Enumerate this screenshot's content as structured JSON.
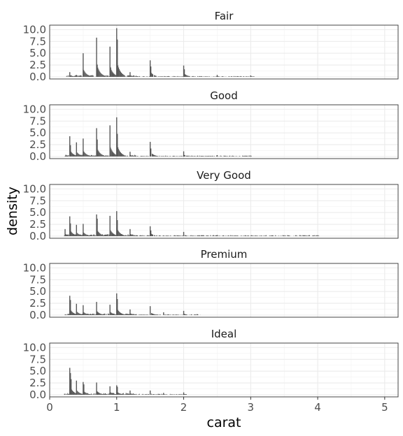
{
  "chart_data": {
    "type": "bar",
    "description_free": true,
    "xlabel": "carat",
    "ylabel": "density",
    "xlim": [
      0,
      5.2
    ],
    "ylim": [
      0,
      10.5
    ],
    "x_ticks": [
      0,
      1,
      2,
      3,
      4,
      5
    ],
    "x_tick_labels": [
      "0",
      "1",
      "2",
      "3",
      "4",
      "5"
    ],
    "y_ticks": [
      0,
      2.5,
      5,
      7.5,
      10
    ],
    "y_tick_labels": [
      "0.0",
      "2.5",
      "5.0",
      "7.5",
      "10.0"
    ],
    "grid": true,
    "panels": [
      {
        "name": "Fair",
        "peaks": [
          [
            0.3,
            1.0
          ],
          [
            0.4,
            0.4
          ],
          [
            0.5,
            5.0
          ],
          [
            0.7,
            8.3
          ],
          [
            0.71,
            2.6
          ],
          [
            0.9,
            6.4
          ],
          [
            0.91,
            2.0
          ],
          [
            1.0,
            10.3
          ],
          [
            1.01,
            7.9
          ],
          [
            1.02,
            2.0
          ],
          [
            1.2,
            1.0
          ],
          [
            1.5,
            3.5
          ],
          [
            1.51,
            2.2
          ],
          [
            2.0,
            2.4
          ],
          [
            2.01,
            1.6
          ],
          [
            2.5,
            0.4
          ],
          [
            3.0,
            0.3
          ]
        ],
        "tail": [
          0.25,
          3.05,
          0.35
        ]
      },
      {
        "name": "Good",
        "peaks": [
          [
            0.3,
            4.3
          ],
          [
            0.31,
            2.4
          ],
          [
            0.4,
            3.0
          ],
          [
            0.5,
            3.8
          ],
          [
            0.7,
            6.0
          ],
          [
            0.71,
            3.6
          ],
          [
            0.9,
            6.6
          ],
          [
            1.0,
            8.3
          ],
          [
            1.01,
            4.8
          ],
          [
            1.2,
            1.0
          ],
          [
            1.5,
            3.1
          ],
          [
            1.51,
            1.7
          ],
          [
            2.0,
            1.1
          ],
          [
            2.5,
            0.3
          ],
          [
            3.0,
            0.2
          ]
        ],
        "tail": [
          0.23,
          3.02,
          0.4
        ]
      },
      {
        "name": "Very Good",
        "peaks": [
          [
            0.23,
            1.5
          ],
          [
            0.3,
            4.2
          ],
          [
            0.31,
            2.7
          ],
          [
            0.4,
            2.4
          ],
          [
            0.5,
            2.6
          ],
          [
            0.7,
            4.6
          ],
          [
            0.71,
            3.7
          ],
          [
            0.9,
            4.3
          ],
          [
            1.0,
            5.3
          ],
          [
            1.01,
            3.4
          ],
          [
            1.2,
            1.5
          ],
          [
            1.5,
            2.1
          ],
          [
            1.51,
            1.2
          ],
          [
            2.0,
            0.9
          ],
          [
            2.5,
            0.25
          ],
          [
            4.0,
            0.2
          ]
        ],
        "tail": [
          0.22,
          4.02,
          0.45
        ]
      },
      {
        "name": "Premium",
        "peaks": [
          [
            0.3,
            4.1
          ],
          [
            0.31,
            3.2
          ],
          [
            0.4,
            2.4
          ],
          [
            0.5,
            2.1
          ],
          [
            0.7,
            2.8
          ],
          [
            0.9,
            2.2
          ],
          [
            1.0,
            4.6
          ],
          [
            1.01,
            3.4
          ],
          [
            1.2,
            1.2
          ],
          [
            1.5,
            1.9
          ],
          [
            1.7,
            0.6
          ],
          [
            2.0,
            0.9
          ],
          [
            2.2,
            0.2
          ]
        ],
        "tail": [
          0.23,
          2.25,
          0.35
        ]
      },
      {
        "name": "Ideal",
        "peaks": [
          [
            0.3,
            5.7
          ],
          [
            0.31,
            4.6
          ],
          [
            0.32,
            3.3
          ],
          [
            0.4,
            3.0
          ],
          [
            0.5,
            2.7
          ],
          [
            0.51,
            2.2
          ],
          [
            0.7,
            2.6
          ],
          [
            0.9,
            1.8
          ],
          [
            1.0,
            2.0
          ],
          [
            1.01,
            1.7
          ],
          [
            1.2,
            0.9
          ],
          [
            1.5,
            0.9
          ],
          [
            1.7,
            0.4
          ],
          [
            2.0,
            0.5
          ]
        ],
        "tail": [
          0.22,
          2.05,
          0.4
        ]
      }
    ]
  }
}
